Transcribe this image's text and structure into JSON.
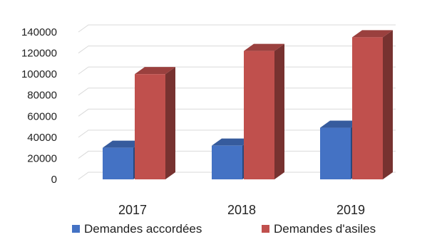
{
  "chart_data": {
    "type": "bar",
    "title": "",
    "xlabel": "",
    "ylabel": "",
    "categories": [
      "2017",
      "2018",
      "2019"
    ],
    "series": [
      {
        "name": "Demandes accordées",
        "values": [
          30000,
          32000,
          49000
        ],
        "color": "#4472C4"
      },
      {
        "name": "Demandes d'asiles",
        "values": [
          100000,
          122000,
          135000
        ],
        "color": "#C0504D"
      }
    ],
    "ylim": [
      0,
      140000
    ],
    "yticks": [
      0,
      20000,
      40000,
      60000,
      80000,
      100000,
      120000,
      140000
    ],
    "ytick_labels": [
      "0",
      "20000",
      "40000",
      "60000",
      "80000",
      "100000",
      "120000",
      "140000"
    ],
    "grid": true,
    "three_d": true,
    "legend_position": "bottom"
  }
}
